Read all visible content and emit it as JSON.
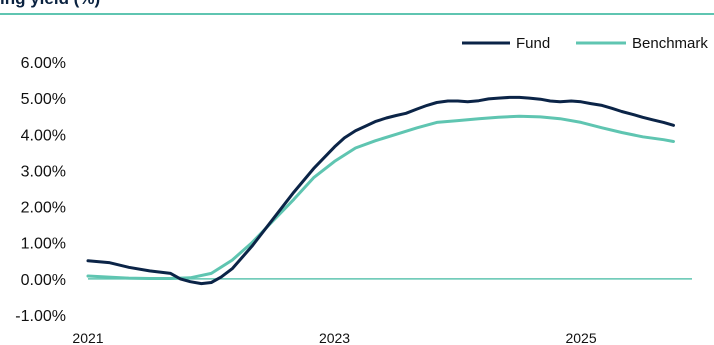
{
  "title": "ing yield (%)",
  "colors": {
    "fund": "#0b2447",
    "benchmark": "#5fc5b1",
    "zero_line": "#5fc5b1",
    "title_rule": "#5fc5b1"
  },
  "chart_data": {
    "type": "line",
    "title": "ing yield (%)",
    "xlabel": "",
    "ylabel": "",
    "xlim": [
      2021.0,
      2025.9
    ],
    "ylim": [
      -1.0,
      6.0
    ],
    "yticks": [
      -1,
      0,
      1,
      2,
      3,
      4,
      5,
      6
    ],
    "ytick_labels": [
      "-1.00%",
      "0.00%",
      "1.00%",
      "2.00%",
      "3.00%",
      "4.00%",
      "5.00%",
      "6.00%"
    ],
    "xticks": [
      2021,
      2023,
      2025
    ],
    "xtick_labels": [
      "2021",
      "2023",
      "2025"
    ],
    "grid": false,
    "legend_position": "top-right",
    "series": [
      {
        "name": "Fund",
        "color": "#0b2447",
        "x": [
          2021.0,
          2021.17,
          2021.33,
          2021.5,
          2021.67,
          2021.75,
          2021.83,
          2021.92,
          2022.0,
          2022.08,
          2022.17,
          2022.33,
          2022.5,
          2022.67,
          2022.83,
          2023.0,
          2023.08,
          2023.17,
          2023.25,
          2023.33,
          2023.42,
          2023.5,
          2023.58,
          2023.67,
          2023.75,
          2023.83,
          2023.92,
          2024.0,
          2024.08,
          2024.17,
          2024.25,
          2024.33,
          2024.42,
          2024.5,
          2024.58,
          2024.67,
          2024.75,
          2024.83,
          2024.92,
          2025.0,
          2025.08,
          2025.17,
          2025.25,
          2025.33,
          2025.42,
          2025.5,
          2025.58,
          2025.67,
          2025.75
        ],
        "y": [
          0.5,
          0.45,
          0.32,
          0.22,
          0.15,
          0.0,
          -0.08,
          -0.13,
          -0.1,
          0.05,
          0.28,
          0.9,
          1.65,
          2.4,
          3.05,
          3.65,
          3.9,
          4.1,
          4.22,
          4.35,
          4.45,
          4.52,
          4.58,
          4.7,
          4.8,
          4.88,
          4.92,
          4.92,
          4.9,
          4.93,
          4.98,
          5.0,
          5.02,
          5.02,
          5.0,
          4.97,
          4.92,
          4.9,
          4.92,
          4.9,
          4.85,
          4.8,
          4.72,
          4.63,
          4.55,
          4.47,
          4.4,
          4.33,
          4.25
        ]
      },
      {
        "name": "Benchmark",
        "color": "#5fc5b1",
        "x": [
          2021.0,
          2021.17,
          2021.33,
          2021.5,
          2021.67,
          2021.83,
          2022.0,
          2022.17,
          2022.33,
          2022.5,
          2022.67,
          2022.83,
          2023.0,
          2023.17,
          2023.33,
          2023.5,
          2023.67,
          2023.83,
          2024.0,
          2024.17,
          2024.33,
          2024.5,
          2024.67,
          2024.83,
          2025.0,
          2025.17,
          2025.33,
          2025.5,
          2025.67,
          2025.75
        ],
        "y": [
          0.08,
          0.05,
          0.02,
          0.01,
          0.01,
          0.03,
          0.15,
          0.52,
          1.0,
          1.6,
          2.2,
          2.8,
          3.25,
          3.62,
          3.82,
          4.0,
          4.18,
          4.33,
          4.38,
          4.43,
          4.47,
          4.5,
          4.48,
          4.43,
          4.33,
          4.18,
          4.05,
          3.93,
          3.85,
          3.8
        ]
      }
    ]
  }
}
